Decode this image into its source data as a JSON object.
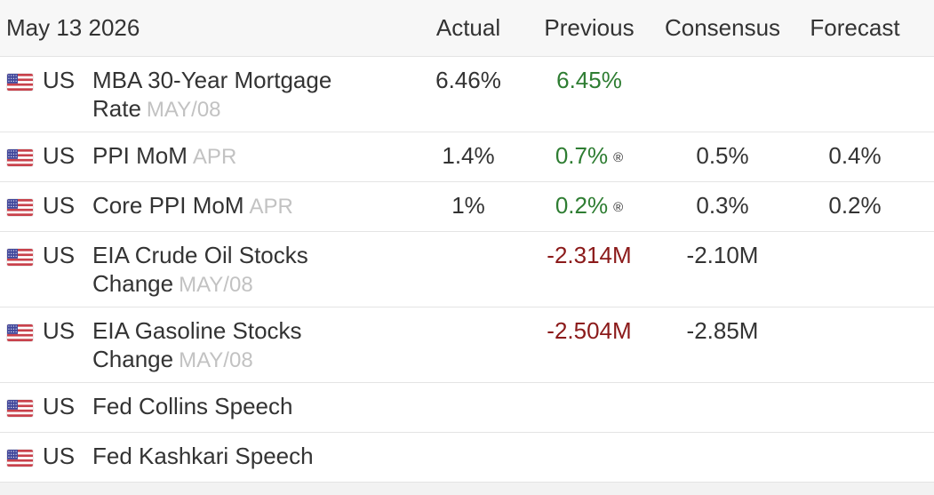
{
  "header": {
    "date": "May 13 2026",
    "actual_label": "Actual",
    "previous_label": "Previous",
    "consensus_label": "Consensus",
    "forecast_label": "Forecast"
  },
  "flag_icon": "us-flag-icon",
  "colors": {
    "previous_up": "#2e7d32",
    "previous_down": "#8b1a1a",
    "header_bg": "#f7f7f7",
    "reference_gray": "#c2c2c2"
  },
  "events": [
    {
      "country": "US",
      "name": "MBA 30-Year Mortgage Rate",
      "reference": "MAY/08",
      "actual": "6.46%",
      "previous": "6.45%",
      "revised_mark": "",
      "consensus": "",
      "forecast": ""
    },
    {
      "country": "US",
      "name": "PPI MoM",
      "reference": "APR",
      "actual": "1.4%",
      "previous": "0.7%",
      "revised_mark": "®",
      "consensus": "0.5%",
      "forecast": "0.4%"
    },
    {
      "country": "US",
      "name": "Core PPI MoM",
      "reference": "APR",
      "actual": "1%",
      "previous": "0.2%",
      "revised_mark": "®",
      "consensus": "0.3%",
      "forecast": "0.2%"
    },
    {
      "country": "US",
      "name": "EIA Crude Oil Stocks Change",
      "reference": "MAY/08",
      "actual": "",
      "previous": "-2.314M",
      "revised_mark": "",
      "consensus": "-2.10M",
      "forecast": ""
    },
    {
      "country": "US",
      "name": "EIA Gasoline Stocks Change",
      "reference": "MAY/08",
      "actual": "",
      "previous": "-2.504M",
      "revised_mark": "",
      "consensus": "-2.85M",
      "forecast": ""
    },
    {
      "country": "US",
      "name": "Fed Collins Speech",
      "reference": "",
      "actual": "",
      "previous": "",
      "revised_mark": "",
      "consensus": "",
      "forecast": ""
    },
    {
      "country": "US",
      "name": "Fed Kashkari Speech",
      "reference": "",
      "actual": "",
      "previous": "",
      "revised_mark": "",
      "consensus": "",
      "forecast": ""
    }
  ]
}
